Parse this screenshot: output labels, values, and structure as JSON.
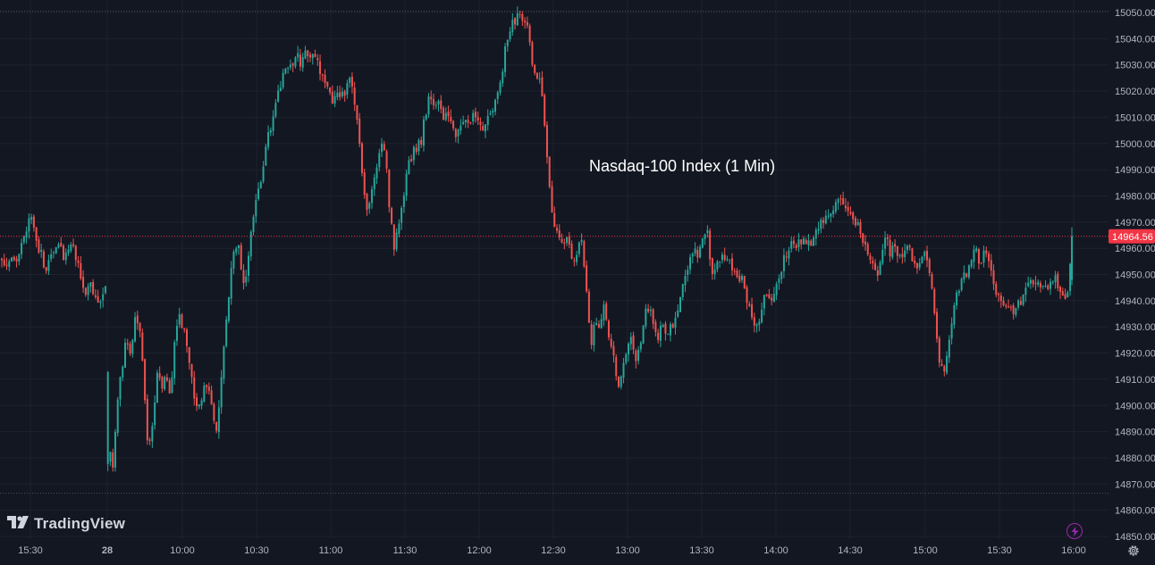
{
  "app": {
    "brand": "TradingView",
    "title": "Nasdaq-100 Index (1 Min)"
  },
  "colors": {
    "background": "#131722",
    "up": "#26a69a",
    "down": "#ef5350",
    "grid": "#1e222d",
    "dotted_line": "#4a4f5c",
    "price_line": "#f23645",
    "price_badge": "#f23645",
    "axis_text": "#b2b5be",
    "alert_icon": "#9c27b0"
  },
  "icons": {
    "logo": "tradingview-logo-icon",
    "alert": "lightning-bolt-icon",
    "settings": "gear-icon"
  },
  "chart_data": {
    "type": "candlestick",
    "title": "Nasdaq-100 Index (1 Min)",
    "interval": "1 Min",
    "grid": true,
    "ylim": [
      14848,
      15054
    ],
    "y_ticks": [
      "15050.00",
      "15040.00",
      "15030.00",
      "15020.00",
      "15010.00",
      "15000.00",
      "14990.00",
      "14980.00",
      "14970.00",
      "14960.00",
      "14950.00",
      "14940.00",
      "14930.00",
      "14920.00",
      "14910.00",
      "14900.00",
      "14890.00",
      "14880.00",
      "14870.00",
      "14860.00",
      "14850.00"
    ],
    "x_ticks": [
      "15:30",
      "28",
      "10:00",
      "10:30",
      "11:00",
      "11:30",
      "12:00",
      "12:30",
      "13:00",
      "13:30",
      "14:00",
      "14:30",
      "15:00",
      "15:30",
      "16:00"
    ],
    "last_price": "14964.56",
    "reference_lines": [
      15050.5,
      14866.5
    ],
    "path": [
      [
        0,
        14956
      ],
      [
        6,
        14952
      ],
      [
        12,
        14958
      ],
      [
        18,
        14955
      ],
      [
        24,
        14962
      ],
      [
        30,
        14970
      ],
      [
        35,
        14972
      ],
      [
        40,
        14962
      ],
      [
        45,
        14958
      ],
      [
        50,
        14952
      ],
      [
        55,
        14955
      ],
      [
        60,
        14958
      ],
      [
        65,
        14962
      ],
      [
        70,
        14956
      ],
      [
        75,
        14960
      ],
      [
        80,
        14963
      ],
      [
        85,
        14955
      ],
      [
        90,
        14948
      ],
      [
        95,
        14944
      ],
      [
        100,
        14947
      ],
      [
        105,
        14942
      ],
      [
        110,
        14938
      ],
      [
        115,
        14945
      ],
      [
        118,
        14948
      ],
      [
        121,
        14885
      ],
      [
        125,
        14876
      ],
      [
        130,
        14902
      ],
      [
        135,
        14912
      ],
      [
        140,
        14925
      ],
      [
        145,
        14920
      ],
      [
        150,
        14932
      ],
      [
        155,
        14930
      ],
      [
        160,
        14910
      ],
      [
        165,
        14882
      ],
      [
        170,
        14892
      ],
      [
        175,
        14912
      ],
      [
        180,
        14906
      ],
      [
        185,
        14912
      ],
      [
        190,
        14902
      ],
      [
        195,
        14928
      ],
      [
        200,
        14935
      ],
      [
        205,
        14928
      ],
      [
        210,
        14916
      ],
      [
        215,
        14906
      ],
      [
        220,
        14898
      ],
      [
        225,
        14904
      ],
      [
        230,
        14909
      ],
      [
        235,
        14902
      ],
      [
        240,
        14888
      ],
      [
        245,
        14903
      ],
      [
        250,
        14926
      ],
      [
        255,
        14942
      ],
      [
        260,
        14958
      ],
      [
        265,
        14963
      ],
      [
        270,
        14946
      ],
      [
        275,
        14950
      ],
      [
        280,
        14968
      ],
      [
        285,
        14976
      ],
      [
        290,
        14984
      ],
      [
        295,
        14996
      ],
      [
        300,
        15004
      ],
      [
        305,
        15010
      ],
      [
        310,
        15018
      ],
      [
        315,
        15026
      ],
      [
        320,
        15028
      ],
      [
        325,
        15030
      ],
      [
        330,
        15034
      ],
      [
        335,
        15031
      ],
      [
        340,
        15036
      ],
      [
        345,
        15033
      ],
      [
        350,
        15036
      ],
      [
        355,
        15030
      ],
      [
        360,
        15026
      ],
      [
        365,
        15024
      ],
      [
        370,
        15014
      ],
      [
        375,
        15022
      ],
      [
        380,
        15018
      ],
      [
        385,
        15020
      ],
      [
        390,
        15024
      ],
      [
        395,
        15018
      ],
      [
        400,
        15006
      ],
      [
        405,
        14985
      ],
      [
        410,
        14975
      ],
      [
        415,
        14984
      ],
      [
        420,
        14990
      ],
      [
        425,
        15000
      ],
      [
        430,
        14995
      ],
      [
        435,
        14974
      ],
      [
        440,
        14960
      ],
      [
        445,
        14968
      ],
      [
        450,
        14978
      ],
      [
        455,
        14990
      ],
      [
        460,
        14996
      ],
      [
        465,
        14998
      ],
      [
        470,
        15001
      ],
      [
        475,
        15012
      ],
      [
        480,
        15018
      ],
      [
        485,
        15014
      ],
      [
        490,
        15018
      ],
      [
        495,
        15008
      ],
      [
        500,
        15012
      ],
      [
        505,
        15006
      ],
      [
        510,
        15002
      ],
      [
        515,
        15008
      ],
      [
        520,
        15010
      ],
      [
        525,
        15006
      ],
      [
        530,
        15012
      ],
      [
        535,
        15008
      ],
      [
        540,
        15005
      ],
      [
        545,
        15012
      ],
      [
        550,
        15014
      ],
      [
        555,
        15020
      ],
      [
        560,
        15026
      ],
      [
        565,
        15038
      ],
      [
        570,
        15044
      ],
      [
        575,
        15047
      ],
      [
        580,
        15050
      ],
      [
        585,
        15048
      ],
      [
        590,
        15042
      ],
      [
        595,
        15030
      ],
      [
        600,
        15026
      ],
      [
        605,
        15020
      ],
      [
        610,
        15000
      ],
      [
        615,
        14978
      ],
      [
        620,
        14968
      ],
      [
        625,
        14965
      ],
      [
        630,
        14962
      ],
      [
        635,
        14964
      ],
      [
        640,
        14955
      ],
      [
        645,
        14960
      ],
      [
        650,
        14962
      ],
      [
        655,
        14945
      ],
      [
        660,
        14920
      ],
      [
        665,
        14933
      ],
      [
        670,
        14928
      ],
      [
        675,
        14938
      ],
      [
        680,
        14924
      ],
      [
        685,
        14922
      ],
      [
        690,
        14906
      ],
      [
        695,
        14912
      ],
      [
        700,
        14920
      ],
      [
        705,
        14926
      ],
      [
        710,
        14915
      ],
      [
        715,
        14924
      ],
      [
        720,
        14934
      ],
      [
        725,
        14938
      ],
      [
        730,
        14930
      ],
      [
        735,
        14924
      ],
      [
        740,
        14932
      ],
      [
        745,
        14927
      ],
      [
        750,
        14930
      ],
      [
        755,
        14935
      ],
      [
        760,
        14942
      ],
      [
        765,
        14950
      ],
      [
        770,
        14955
      ],
      [
        775,
        14960
      ],
      [
        780,
        14958
      ],
      [
        785,
        14964
      ],
      [
        790,
        14968
      ],
      [
        795,
        14948
      ],
      [
        800,
        14952
      ],
      [
        805,
        14958
      ],
      [
        810,
        14956
      ],
      [
        815,
        14955
      ],
      [
        820,
        14950
      ],
      [
        825,
        14946
      ],
      [
        830,
        14948
      ],
      [
        835,
        14938
      ],
      [
        840,
        14934
      ],
      [
        845,
        14930
      ],
      [
        850,
        14936
      ],
      [
        855,
        14944
      ],
      [
        860,
        14940
      ],
      [
        865,
        14942
      ],
      [
        870,
        14948
      ],
      [
        875,
        14955
      ],
      [
        880,
        14958
      ],
      [
        885,
        14962
      ],
      [
        890,
        14960
      ],
      [
        895,
        14963
      ],
      [
        900,
        14961
      ],
      [
        905,
        14962
      ],
      [
        910,
        14965
      ],
      [
        915,
        14968
      ],
      [
        920,
        14970
      ],
      [
        925,
        14972
      ],
      [
        930,
        14975
      ],
      [
        935,
        14978
      ],
      [
        940,
        14980
      ],
      [
        945,
        14974
      ],
      [
        950,
        14972
      ],
      [
        955,
        14970
      ],
      [
        960,
        14968
      ],
      [
        965,
        14962
      ],
      [
        970,
        14958
      ],
      [
        975,
        14953
      ],
      [
        980,
        14950
      ],
      [
        985,
        14955
      ],
      [
        990,
        14965
      ],
      [
        995,
        14958
      ],
      [
        1000,
        14962
      ],
      [
        1005,
        14956
      ],
      [
        1010,
        14958
      ],
      [
        1015,
        14962
      ],
      [
        1020,
        14956
      ],
      [
        1025,
        14954
      ],
      [
        1030,
        14955
      ],
      [
        1035,
        14958
      ],
      [
        1040,
        14950
      ],
      [
        1045,
        14934
      ],
      [
        1050,
        14916
      ],
      [
        1055,
        14912
      ],
      [
        1060,
        14925
      ],
      [
        1065,
        14935
      ],
      [
        1070,
        14944
      ],
      [
        1075,
        14948
      ],
      [
        1080,
        14950
      ],
      [
        1085,
        14955
      ],
      [
        1090,
        14959
      ],
      [
        1095,
        14955
      ],
      [
        1100,
        14958
      ],
      [
        1105,
        14957
      ],
      [
        1110,
        14947
      ],
      [
        1115,
        14941
      ],
      [
        1120,
        14938
      ],
      [
        1125,
        14940
      ],
      [
        1130,
        14937
      ],
      [
        1135,
        14936
      ],
      [
        1140,
        14940
      ],
      [
        1145,
        14942
      ],
      [
        1150,
        14946
      ],
      [
        1155,
        14948
      ],
      [
        1160,
        14946
      ],
      [
        1165,
        14944
      ],
      [
        1170,
        14945
      ],
      [
        1175,
        14946
      ],
      [
        1180,
        14948
      ],
      [
        1185,
        14944
      ],
      [
        1190,
        14940
      ],
      [
        1195,
        14947
      ],
      [
        1198,
        14964.56
      ]
    ]
  }
}
